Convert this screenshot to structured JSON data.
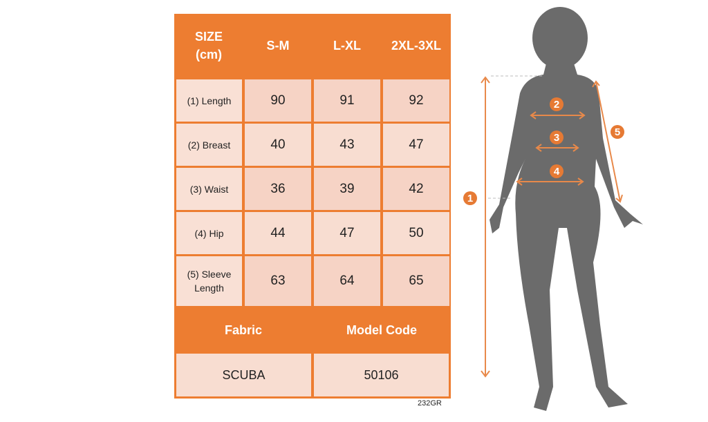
{
  "table": {
    "header": {
      "size_label": "SIZE (cm)",
      "sizes": [
        "S-M",
        "L-XL",
        "2XL-3XL"
      ]
    },
    "rows": [
      {
        "label": "(1) Length",
        "values": [
          "90",
          "91",
          "92"
        ]
      },
      {
        "label": "(2) Breast",
        "values": [
          "40",
          "43",
          "47"
        ]
      },
      {
        "label": "(3) Waist",
        "values": [
          "36",
          "39",
          "42"
        ]
      },
      {
        "label": "(4) Hip",
        "values": [
          "44",
          "47",
          "50"
        ]
      },
      {
        "label": "(5) Sleeve Length",
        "values": [
          "63",
          "64",
          "65"
        ]
      }
    ],
    "footer": {
      "fabric_label": "Fabric",
      "model_code_label": "Model Code",
      "fabric": "SCUBA",
      "model_code": "50106"
    }
  },
  "product_code": "232GR",
  "figure": {
    "markers": [
      "1",
      "2",
      "3",
      "4",
      "5"
    ]
  },
  "colors": {
    "accent": "#ED7D31",
    "silhouette": "#6b6b6b",
    "cell": "#F6D3C5"
  }
}
